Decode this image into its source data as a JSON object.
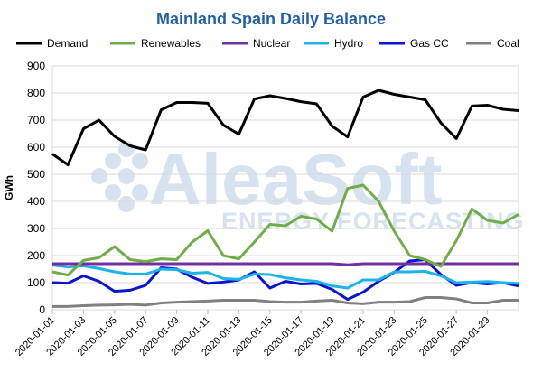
{
  "chart_data": {
    "type": "line",
    "title": "Mainland Spain Daily Balance",
    "xlabel": "",
    "ylabel": "GWh",
    "ylim": [
      0,
      900
    ],
    "yticks": [
      "0",
      "100",
      "200",
      "300",
      "400",
      "500",
      "600",
      "700",
      "800",
      "900"
    ],
    "grid": true,
    "legend_position": "top",
    "watermark": "AleaSoft ENERGY FORECASTING",
    "x": [
      "2020-01-01",
      "2020-01-02",
      "2020-01-03",
      "2020-01-04",
      "2020-01-05",
      "2020-01-06",
      "2020-01-07",
      "2020-01-08",
      "2020-01-09",
      "2020-01-10",
      "2020-01-11",
      "2020-01-12",
      "2020-01-13",
      "2020-01-14",
      "2020-01-15",
      "2020-01-16",
      "2020-01-17",
      "2020-01-18",
      "2020-01-19",
      "2020-01-20",
      "2020-01-21",
      "2020-01-22",
      "2020-01-23",
      "2020-01-24",
      "2020-01-25",
      "2020-01-26",
      "2020-01-27",
      "2020-01-28",
      "2020-01-29",
      "2020-01-30",
      "2020-01-31"
    ],
    "xtick_labels": [
      "2020-01-01",
      "2020-01-03",
      "2020-01-05",
      "2020-01-07",
      "2020-01-09",
      "2020-01-11",
      "2020-01-13",
      "2020-01-15",
      "2020-01-17",
      "2020-01-19",
      "2020-01-21",
      "2020-01-23",
      "2020-01-25",
      "2020-01-27",
      "2020-01-29"
    ],
    "series": [
      {
        "name": "Demand",
        "color": "#000000",
        "values": [
          575,
          535,
          668,
          700,
          640,
          605,
          590,
          738,
          765,
          765,
          762,
          682,
          648,
          778,
          790,
          780,
          768,
          760,
          678,
          638,
          785,
          810,
          795,
          785,
          775,
          690,
          632,
          752,
          755,
          740,
          735
        ]
      },
      {
        "name": "Renewables",
        "color": "#70AD47",
        "values": [
          140,
          128,
          182,
          192,
          233,
          185,
          178,
          188,
          185,
          250,
          292,
          200,
          188,
          250,
          315,
          310,
          345,
          335,
          290,
          448,
          460,
          400,
          290,
          200,
          185,
          160,
          255,
          372,
          330,
          320,
          352
        ]
      },
      {
        "name": "Nuclear",
        "color": "#7030A0",
        "values": [
          170,
          170,
          170,
          170,
          170,
          170,
          170,
          170,
          170,
          170,
          170,
          170,
          170,
          170,
          170,
          170,
          170,
          170,
          170,
          166,
          170,
          170,
          170,
          170,
          170,
          170,
          170,
          170,
          170,
          170,
          170
        ]
      },
      {
        "name": "Hydro",
        "color": "#1CB4E8",
        "values": [
          165,
          158,
          162,
          152,
          140,
          132,
          132,
          150,
          148,
          135,
          138,
          115,
          112,
          132,
          130,
          118,
          110,
          105,
          88,
          80,
          110,
          110,
          140,
          140,
          142,
          125,
          100,
          102,
          104,
          100,
          97
        ]
      },
      {
        "name": "Gas CC",
        "color": "#0A14D2",
        "values": [
          100,
          98,
          125,
          105,
          68,
          72,
          90,
          155,
          150,
          120,
          97,
          102,
          110,
          140,
          80,
          105,
          95,
          97,
          75,
          38,
          65,
          105,
          138,
          180,
          185,
          130,
          90,
          100,
          95,
          100,
          88
        ]
      },
      {
        "name": "Coal",
        "color": "#808080",
        "values": [
          12,
          12,
          15,
          17,
          18,
          20,
          17,
          25,
          28,
          30,
          32,
          35,
          35,
          35,
          30,
          28,
          28,
          32,
          35,
          25,
          22,
          28,
          28,
          30,
          45,
          45,
          40,
          25,
          25,
          35,
          35
        ]
      }
    ]
  }
}
